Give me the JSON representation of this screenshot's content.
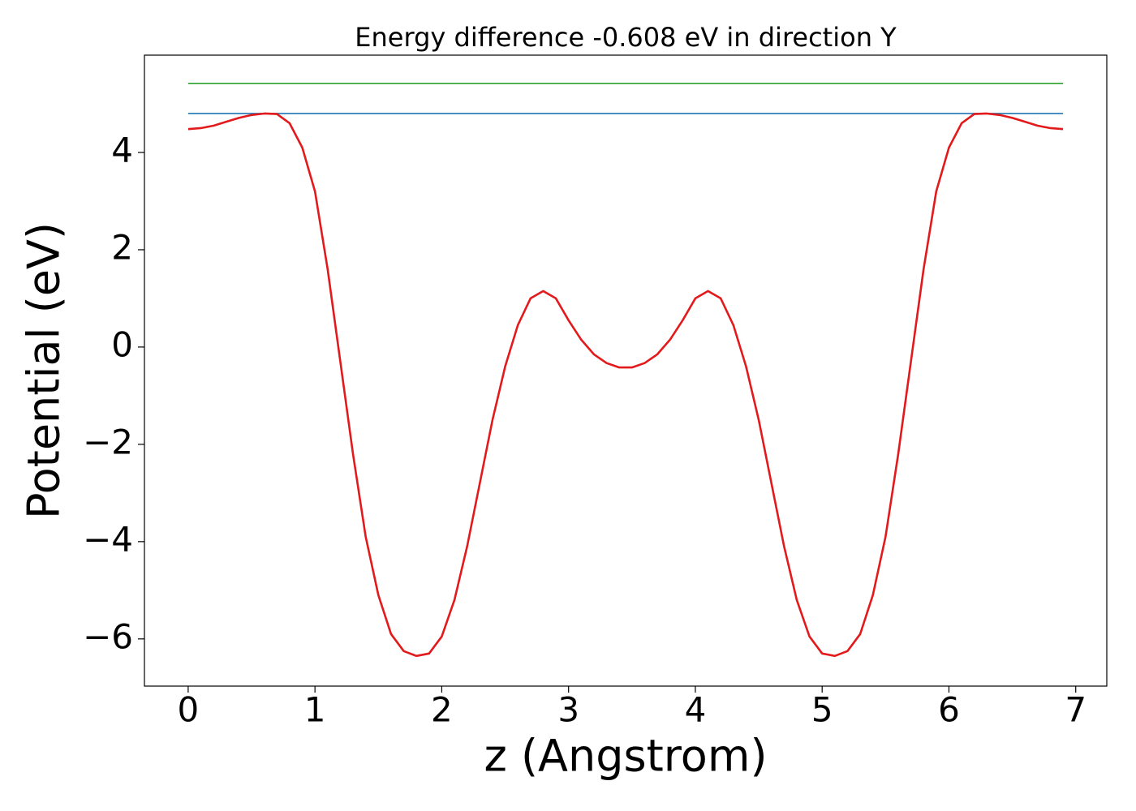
{
  "chart_data": {
    "type": "line",
    "title": "Energy difference -0.608 eV in direction Y",
    "xlabel": "z (Angstrom)",
    "ylabel": "Potential (eV)",
    "xlim": [
      -0.345,
      7.245
    ],
    "ylim": [
      -6.97,
      6.0
    ],
    "xticks": [
      0,
      1,
      2,
      3,
      4,
      5,
      6,
      7
    ],
    "yticks": [
      {
        "value": -6,
        "label": "−6"
      },
      {
        "value": -4,
        "label": "−4"
      },
      {
        "value": -2,
        "label": "−2"
      },
      0,
      2,
      4
    ],
    "grid": false,
    "series": [
      {
        "color": "#2ca02c",
        "x": [
          0,
          6.9
        ],
        "values": [
          5.42,
          5.42
        ]
      },
      {
        "color": "#1f77b4",
        "x": [
          0,
          6.9
        ],
        "values": [
          4.8,
          4.8
        ]
      },
      {
        "color": "#e31a1c",
        "x": [
          0,
          0.1,
          0.2,
          0.3,
          0.4,
          0.5,
          0.6,
          0.7,
          0.8,
          0.9,
          1.0,
          1.1,
          1.2,
          1.3,
          1.4,
          1.5,
          1.6,
          1.7,
          1.8,
          1.9,
          2.0,
          2.1,
          2.2,
          2.3,
          2.4,
          2.5,
          2.6,
          2.7,
          2.8,
          2.9,
          3.0,
          3.1,
          3.2,
          3.3,
          3.4,
          3.5,
          3.6,
          3.7,
          3.8,
          3.9,
          4.0,
          4.1,
          4.2,
          4.3,
          4.4,
          4.5,
          4.6,
          4.7,
          4.8,
          4.9,
          5.0,
          5.1,
          5.2,
          5.3,
          5.4,
          5.5,
          5.6,
          5.7,
          5.8,
          5.9,
          6.0,
          6.1,
          6.2,
          6.3,
          6.4,
          6.5,
          6.6,
          6.7,
          6.8,
          6.9
        ],
        "values": [
          4.48,
          4.5,
          4.55,
          4.63,
          4.71,
          4.77,
          4.8,
          4.79,
          4.6,
          4.1,
          3.2,
          1.6,
          -0.3,
          -2.2,
          -3.9,
          -5.1,
          -5.9,
          -6.25,
          -6.35,
          -6.3,
          -5.95,
          -5.2,
          -4.1,
          -2.8,
          -1.5,
          -0.4,
          0.45,
          1.0,
          1.15,
          1.0,
          0.55,
          0.15,
          -0.15,
          -0.33,
          -0.42,
          -0.42,
          -0.33,
          -0.15,
          0.15,
          0.55,
          1.0,
          1.15,
          1.0,
          0.45,
          -0.4,
          -1.5,
          -2.8,
          -4.1,
          -5.2,
          -5.95,
          -6.3,
          -6.35,
          -6.25,
          -5.9,
          -5.1,
          -3.9,
          -2.2,
          -0.3,
          1.6,
          3.2,
          4.1,
          4.6,
          4.79,
          4.8,
          4.77,
          4.71,
          4.63,
          4.55,
          4.5,
          4.48
        ]
      }
    ]
  }
}
